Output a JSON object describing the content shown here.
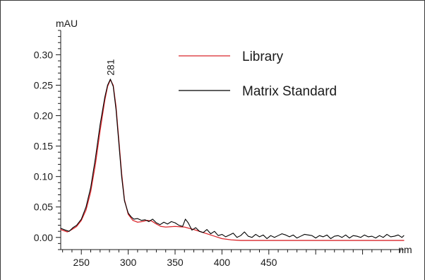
{
  "chart_data": {
    "type": "line",
    "title": "",
    "xlabel": "nm",
    "ylabel": "mAU",
    "xlim": [
      228,
      594
    ],
    "ylim": [
      -0.02,
      0.34
    ],
    "xticks": [
      250,
      300,
      350,
      400,
      450
    ],
    "xtick_labels": [
      "250",
      "300",
      "350",
      "400",
      "450"
    ],
    "yticks": [
      0.0,
      0.05,
      0.1,
      0.15,
      0.2,
      0.25,
      0.3
    ],
    "ytick_labels": [
      "0.00",
      "0.05",
      "0.10",
      "0.15",
      "0.20",
      "0.25",
      "0.30"
    ],
    "grid": false,
    "legend_position": "top-right",
    "annotations": [
      {
        "text": "281",
        "x": 281,
        "y": 0.26
      }
    ],
    "series": [
      {
        "name": "Library",
        "color": "#d9262b",
        "x": [
          228,
          235,
          240,
          245,
          250,
          255,
          260,
          265,
          270,
          275,
          278,
          281,
          284,
          287,
          290,
          293,
          296,
          300,
          305,
          310,
          315,
          320,
          325,
          330,
          335,
          340,
          350,
          360,
          370,
          380,
          390,
          400,
          410,
          420,
          430,
          440,
          460,
          480,
          500,
          520,
          540,
          560,
          580,
          594
        ],
        "y": [
          0.013,
          0.009,
          0.013,
          0.018,
          0.028,
          0.045,
          0.075,
          0.12,
          0.175,
          0.225,
          0.248,
          0.259,
          0.25,
          0.215,
          0.16,
          0.105,
          0.062,
          0.038,
          0.028,
          0.025,
          0.026,
          0.028,
          0.027,
          0.022,
          0.018,
          0.017,
          0.018,
          0.017,
          0.013,
          0.008,
          0.003,
          -0.002,
          -0.004,
          -0.005,
          -0.005,
          -0.005,
          -0.005,
          -0.005,
          -0.005,
          -0.005,
          -0.005,
          -0.005,
          -0.005,
          -0.005
        ]
      },
      {
        "name": "Matrix Standard",
        "color": "#000000",
        "x": [
          228,
          233,
          237,
          241,
          245,
          250,
          255,
          260,
          265,
          270,
          275,
          278,
          281,
          284,
          287,
          290,
          293,
          296,
          300,
          303,
          306,
          310,
          314,
          318,
          322,
          326,
          330,
          334,
          338,
          342,
          346,
          350,
          354,
          358,
          361,
          364,
          368,
          372,
          376,
          380,
          384,
          388,
          392,
          396,
          400,
          404,
          408,
          412,
          416,
          420,
          424,
          428,
          432,
          436,
          440,
          444,
          448,
          452,
          456,
          460,
          464,
          468,
          472,
          476,
          480,
          484,
          488,
          492,
          496,
          500,
          504,
          508,
          512,
          516,
          520,
          524,
          528,
          532,
          536,
          540,
          544,
          548,
          552,
          556,
          560,
          564,
          568,
          572,
          576,
          580,
          584,
          588,
          592,
          594
        ],
        "y": [
          0.015,
          0.012,
          0.01,
          0.016,
          0.02,
          0.03,
          0.05,
          0.082,
          0.13,
          0.185,
          0.23,
          0.25,
          0.26,
          0.248,
          0.21,
          0.155,
          0.1,
          0.06,
          0.04,
          0.034,
          0.03,
          0.031,
          0.028,
          0.029,
          0.026,
          0.03,
          0.024,
          0.021,
          0.025,
          0.022,
          0.026,
          0.024,
          0.02,
          0.018,
          0.03,
          0.024,
          0.012,
          0.016,
          0.01,
          0.008,
          0.013,
          0.006,
          0.01,
          0.003,
          0.005,
          0.001,
          0.004,
          0.007,
          0.0,
          0.003,
          0.009,
          0.002,
          0.0,
          0.005,
          0.001,
          0.004,
          -0.002,
          0.003,
          0.0,
          0.003,
          0.006,
          0.004,
          0.001,
          0.004,
          -0.001,
          0.002,
          0.005,
          0.004,
          0.003,
          -0.001,
          0.003,
          0.001,
          0.004,
          -0.002,
          0.002,
          0.003,
          0.0,
          0.004,
          -0.001,
          0.003,
          0.002,
          0.0,
          0.004,
          0.001,
          0.002,
          -0.001,
          0.003,
          0.0,
          0.005,
          0.001,
          0.002,
          0.004,
          0.0,
          0.003
        ]
      }
    ]
  }
}
